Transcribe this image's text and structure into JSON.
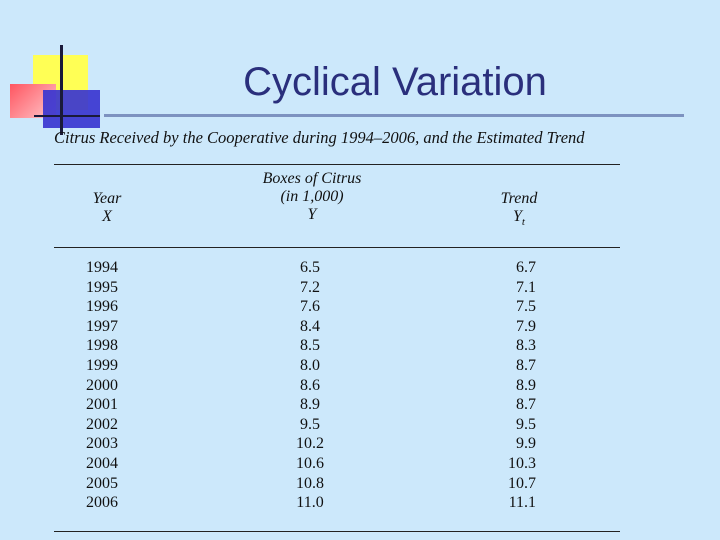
{
  "slide": {
    "title": "Cyclical Variation",
    "caption": "Citrus Received by the Cooperative during 1994–2006, and the Estimated Trend"
  },
  "table": {
    "headers": {
      "year": [
        "Year",
        "X"
      ],
      "boxes": [
        "Boxes of Citrus",
        "(in 1,000)",
        "Y"
      ],
      "trend": [
        "Trend",
        "Y",
        "t"
      ]
    },
    "rows": [
      {
        "year": "1994",
        "y": "6.5",
        "trend": "6.7"
      },
      {
        "year": "1995",
        "y": "7.2",
        "trend": "7.1"
      },
      {
        "year": "1996",
        "y": "7.6",
        "trend": "7.5"
      },
      {
        "year": "1997",
        "y": "8.4",
        "trend": "7.9"
      },
      {
        "year": "1998",
        "y": "8.5",
        "trend": "8.3"
      },
      {
        "year": "1999",
        "y": "8.0",
        "trend": "8.7"
      },
      {
        "year": "2000",
        "y": "8.6",
        "trend": "8.9"
      },
      {
        "year": "2001",
        "y": "8.9",
        "trend": "8.7"
      },
      {
        "year": "2002",
        "y": "9.5",
        "trend": "9.5"
      },
      {
        "year": "2003",
        "y": "10.2",
        "trend": "9.9"
      },
      {
        "year": "2004",
        "y": "10.6",
        "trend": "10.3"
      },
      {
        "year": "2005",
        "y": "10.8",
        "trend": "10.7"
      },
      {
        "year": "2006",
        "y": "11.0",
        "trend": "11.1"
      }
    ]
  },
  "colors": {
    "background": "#cce8fb",
    "title": "#2a2f7c",
    "accent_yellow": "#ffff55",
    "accent_red": "#ff6670",
    "accent_blue": "#3a35d0"
  }
}
